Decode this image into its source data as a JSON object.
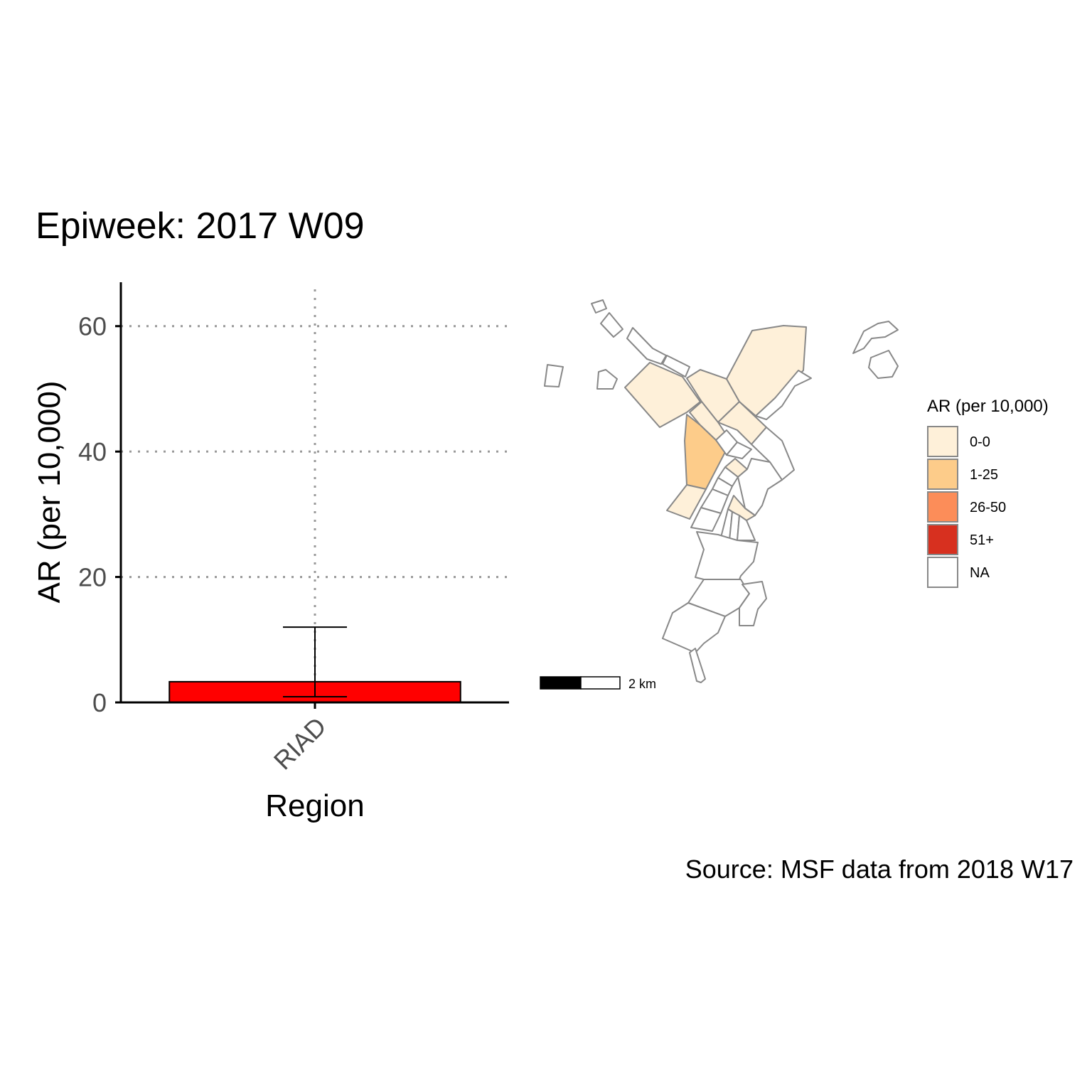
{
  "title": "Epiweek: 2017 W09",
  "caption": "Source: MSF data from 2018 W17",
  "chart_data": [
    {
      "type": "bar",
      "xlabel": "Region",
      "ylabel": "AR (per 10,000)",
      "categories": [
        "RIAD"
      ],
      "values": [
        3.3
      ],
      "error_low": [
        0.9
      ],
      "error_high": [
        12.0
      ],
      "ylim": [
        0,
        67
      ],
      "yticks": [
        0,
        20,
        40,
        60
      ],
      "grid": "dotted, major x and y",
      "bar_color": "#ff0000"
    },
    {
      "type": "choropleth",
      "legend_title": "AR (per 10,000)",
      "legend_position": "right",
      "legend": [
        {
          "label": "0-0",
          "color": "#fef0d9"
        },
        {
          "label": "1-25",
          "color": "#fdcc8a"
        },
        {
          "label": "26-50",
          "color": "#fc8d59"
        },
        {
          "label": "51+",
          "color": "#d7301f"
        },
        {
          "label": "NA",
          "color": "#ffffff"
        }
      ],
      "scalebar_label": "2 km",
      "border_color": "#888888"
    }
  ]
}
